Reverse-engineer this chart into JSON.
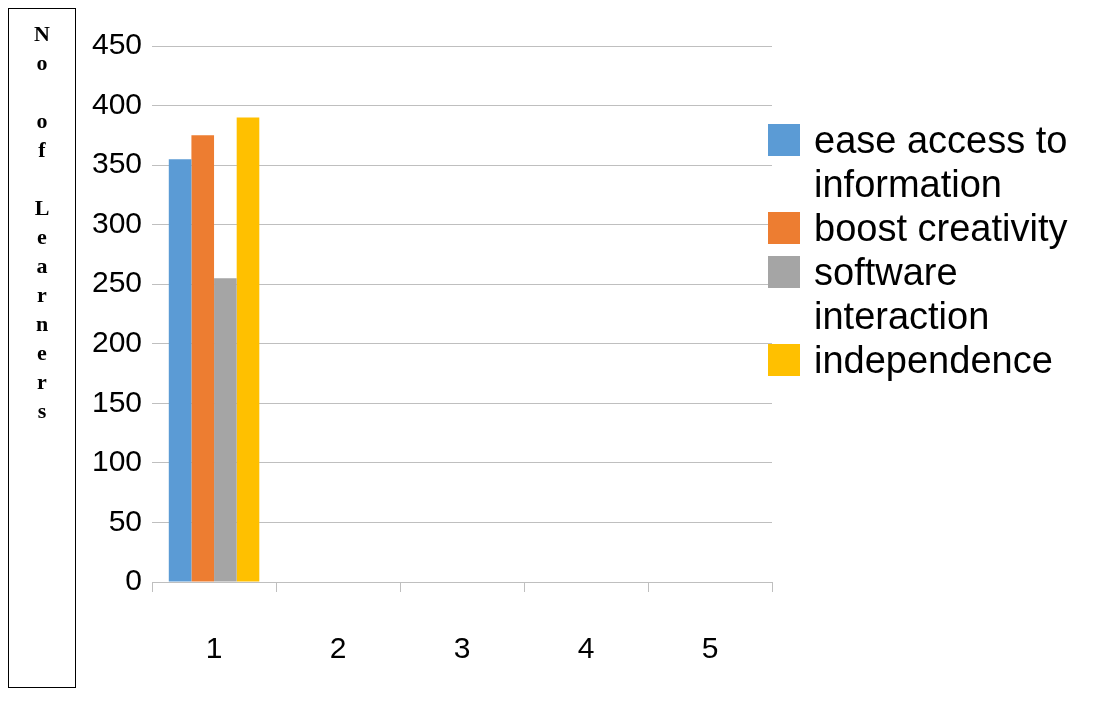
{
  "chart_data": {
    "type": "bar",
    "ylabel": "No of Learners",
    "categories": [
      "1",
      "2",
      "3",
      "4",
      "5"
    ],
    "series": [
      {
        "name": "ease access to information",
        "color": "#5b9bd5",
        "values": [
          355,
          null,
          null,
          null,
          null
        ]
      },
      {
        "name": "boost creativity",
        "color": "#ed7d31",
        "values": [
          375,
          null,
          null,
          null,
          null
        ]
      },
      {
        "name": "software interaction",
        "color": "#a5a5a5",
        "values": [
          255,
          null,
          null,
          null,
          null
        ]
      },
      {
        "name": "independence",
        "color": "#ffc000",
        "values": [
          390,
          null,
          null,
          null,
          null
        ]
      }
    ],
    "ylim": [
      0,
      450
    ],
    "yticks": [
      0,
      50,
      100,
      150,
      200,
      250,
      300,
      350,
      400,
      450
    ],
    "grid": "y",
    "legend": "right"
  }
}
